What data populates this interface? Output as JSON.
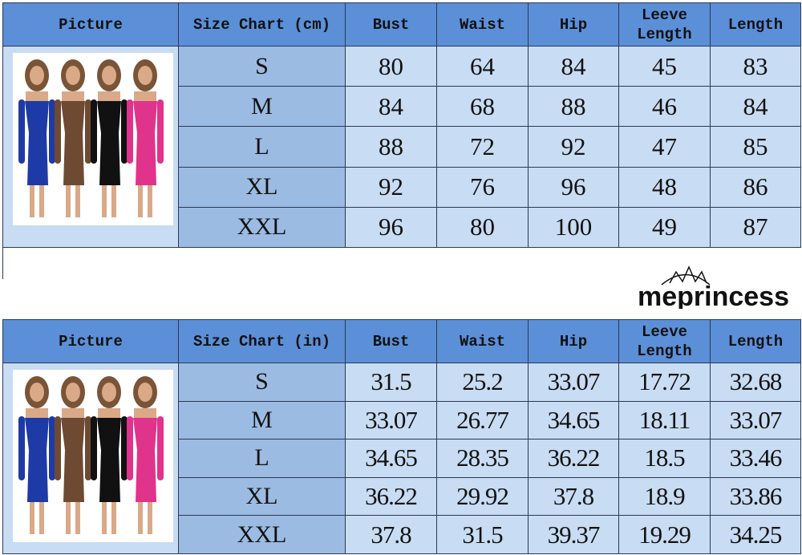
{
  "tables": [
    {
      "headers": [
        "Picture",
        "Size Chart (cm)",
        "Bust",
        "Waist",
        "Hip",
        "Leeve Length",
        "Length"
      ],
      "rows": [
        [
          "S",
          "80",
          "64",
          "84",
          "45",
          "83"
        ],
        [
          "M",
          "84",
          "68",
          "88",
          "46",
          "84"
        ],
        [
          "L",
          "88",
          "72",
          "92",
          "47",
          "85"
        ],
        [
          "XL",
          "92",
          "76",
          "96",
          "48",
          "86"
        ],
        [
          "XXL",
          "96",
          "80",
          "100",
          "49",
          "87"
        ]
      ]
    },
    {
      "headers": [
        "Picture",
        "Size Chart (in)",
        "Bust",
        "Waist",
        "Hip",
        "Leeve Length",
        "Length"
      ],
      "rows": [
        [
          "S",
          "31.5",
          "25.2",
          "33.07",
          "17.72",
          "32.68"
        ],
        [
          "M",
          "33.07",
          "26.77",
          "34.65",
          "18.11",
          "33.07"
        ],
        [
          "L",
          "34.65",
          "28.35",
          "36.22",
          "18.5",
          "33.46"
        ],
        [
          "XL",
          "36.22",
          "29.92",
          "37.8",
          "18.9",
          "33.86"
        ],
        [
          "XXL",
          "37.8",
          "31.5",
          "39.37",
          "19.29",
          "34.25"
        ]
      ]
    }
  ],
  "dress_colors": [
    "#1e3aa6",
    "#6e4a33",
    "#111111",
    "#e0338c"
  ],
  "watermark": "meprincess"
}
